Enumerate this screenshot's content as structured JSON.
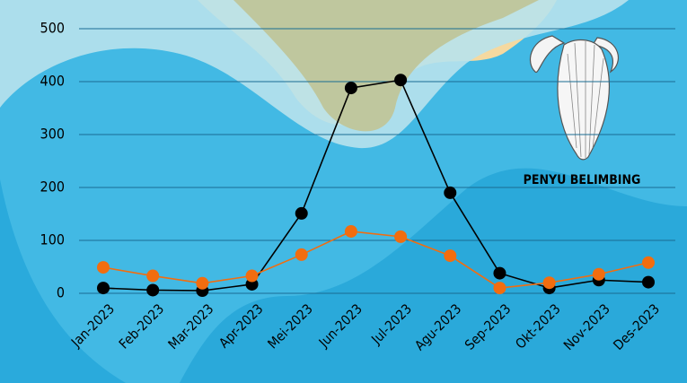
{
  "chart_data": {
    "type": "line",
    "annotation": "PENYU BELIMBING",
    "categories": [
      "Jan-2023",
      "Feb-2023",
      "Mar-2023",
      "Apr-2023",
      "Mei-2023",
      "Jun-2023",
      "Jul-2023",
      "Agu-2023",
      "Sep-2023",
      "Okt-2023",
      "Nov-2023",
      "Des-2023"
    ],
    "series": [
      {
        "color": "#000000",
        "values": [
          10,
          6,
          5,
          17,
          151,
          388,
          403,
          190,
          38,
          10,
          25,
          21
        ]
      },
      {
        "color": "#f26d0f",
        "values": [
          49,
          33,
          19,
          33,
          73,
          117,
          107,
          71,
          10,
          20,
          36,
          58
        ]
      }
    ],
    "ylim": [
      0,
      500
    ],
    "yticks": [
      0,
      100,
      200,
      300,
      400,
      500
    ],
    "grid": true
  }
}
